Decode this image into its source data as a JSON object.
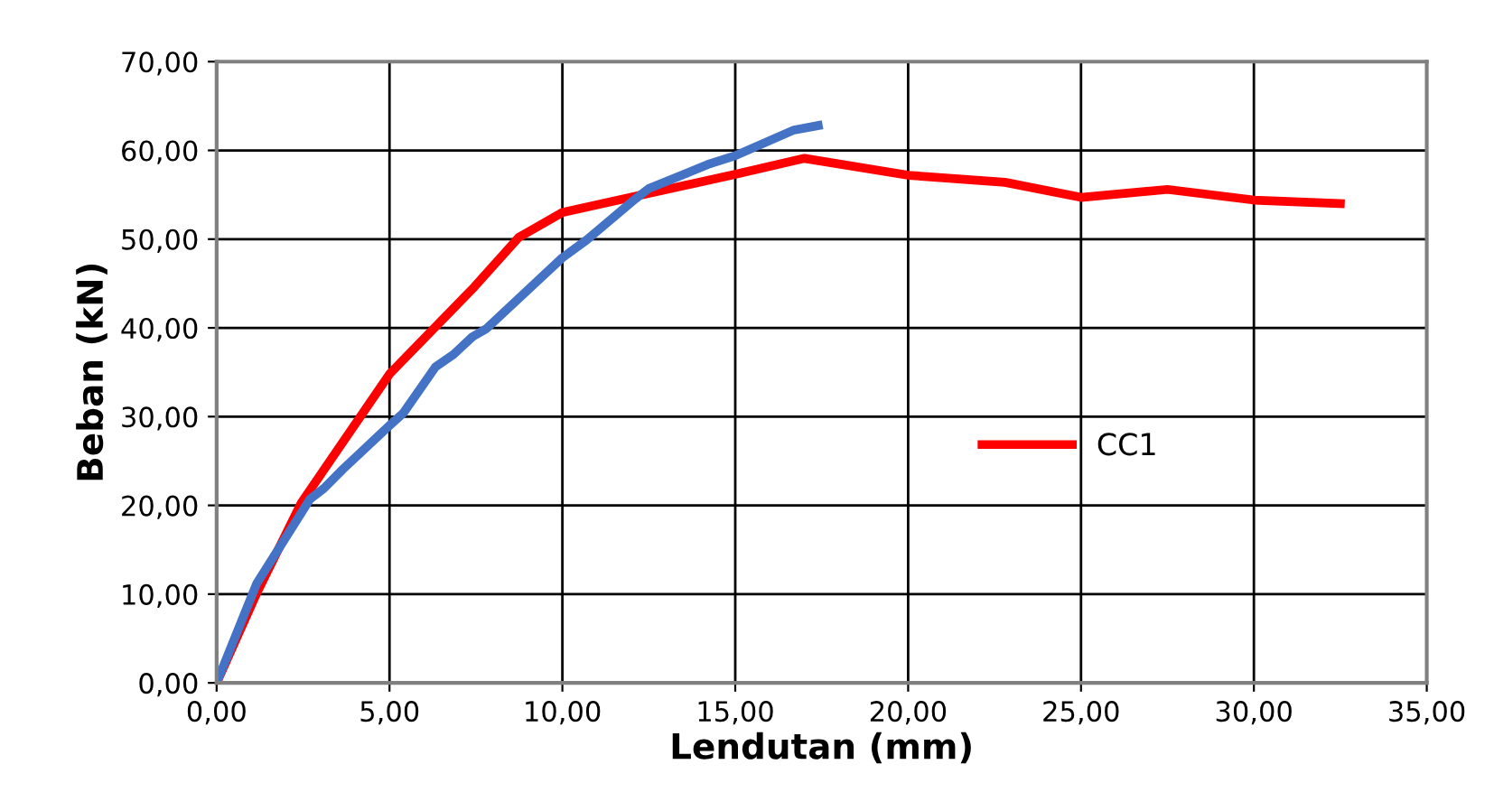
{
  "chart_data": {
    "type": "line",
    "xlabel": "Lendutan (mm)",
    "ylabel": "Beban (kN)",
    "xlim": [
      0,
      35
    ],
    "ylim": [
      0,
      70
    ],
    "xticks": [
      {
        "value": 0,
        "label": "0,00"
      },
      {
        "value": 5,
        "label": "5,00"
      },
      {
        "value": 10,
        "label": "10,00"
      },
      {
        "value": 15,
        "label": "15,00"
      },
      {
        "value": 20,
        "label": "20,00"
      },
      {
        "value": 25,
        "label": "25,00"
      },
      {
        "value": 30,
        "label": "30,00"
      },
      {
        "value": 35,
        "label": "35,00"
      }
    ],
    "yticks": [
      {
        "value": 0,
        "label": "0,00"
      },
      {
        "value": 10,
        "label": "10,00"
      },
      {
        "value": 20,
        "label": "20,00"
      },
      {
        "value": 30,
        "label": "30,00"
      },
      {
        "value": 40,
        "label": "40,00"
      },
      {
        "value": 50,
        "label": "50,00"
      },
      {
        "value": 60,
        "label": "60,00"
      },
      {
        "value": 70,
        "label": "70,00"
      }
    ],
    "grid": true,
    "legend": "right",
    "marker": "none",
    "line_style": "solid",
    "series": [
      {
        "name": "CC1",
        "color": "#ff0000",
        "x": [
          0,
          1.16,
          2.45,
          5,
          7.45,
          8.74,
          10,
          12.3,
          15,
          17.0,
          20,
          22.8,
          25,
          27.5,
          30,
          32.5
        ],
        "values": [
          0,
          10.1,
          20.3,
          34.8,
          44.6,
          50.2,
          53,
          55,
          57.3,
          59.1,
          57.2,
          56.4,
          54.7,
          55.6,
          54.4,
          54.0
        ]
      },
      {
        "color": "#4472c4",
        "x": [
          0,
          1.16,
          2.7,
          3.1,
          3.66,
          5,
          5.4,
          6.33,
          6.85,
          7.4,
          7.8,
          10,
          10.7,
          12.1,
          12.5,
          14.2,
          15,
          16.7,
          17.4
        ],
        "values": [
          0,
          11.2,
          20.7,
          21.9,
          24.1,
          29,
          30.4,
          35.6,
          37,
          39,
          39.9,
          47.9,
          49.9,
          54.5,
          55.7,
          58.4,
          59.4,
          62.3,
          62.8
        ]
      }
    ]
  }
}
